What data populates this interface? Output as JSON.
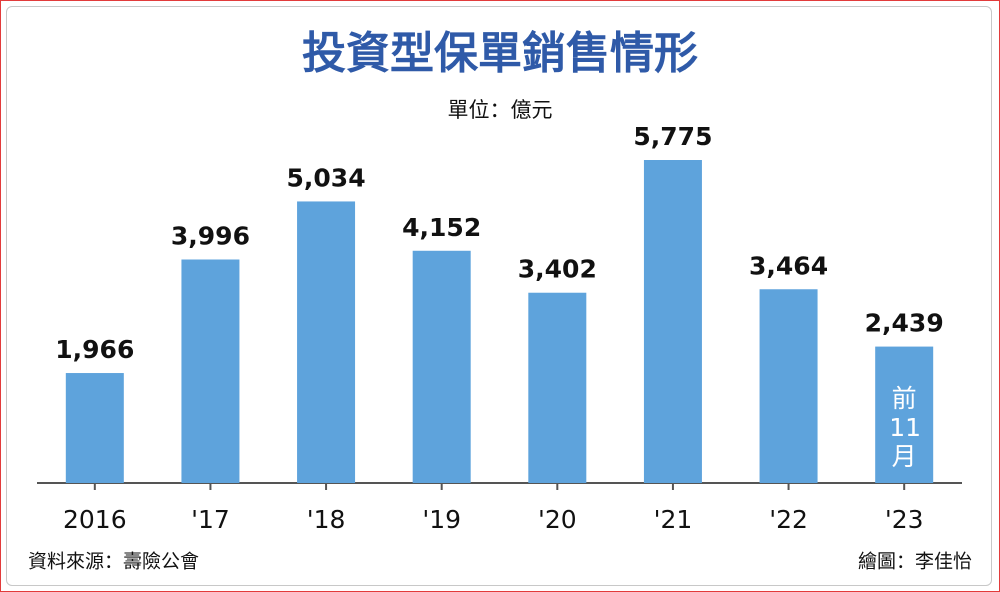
{
  "chart_data": {
    "type": "bar",
    "title": "投資型保單銷售情形",
    "subtitle": "單位：億元",
    "categories": [
      "2016",
      "'17",
      "'18",
      "'19",
      "'20",
      "'21",
      "'22",
      "'23"
    ],
    "values": [
      1966,
      3996,
      5034,
      4152,
      3402,
      5775,
      3464,
      2439
    ],
    "value_labels": [
      "1,966",
      "3,996",
      "5,034",
      "4,152",
      "3,402",
      "5,775",
      "3,464",
      "2,439"
    ],
    "color": "#5ea3dc",
    "annotation": "前11月",
    "source": "資料來源：壽險公會",
    "credit": "繪圖：李佳怡"
  }
}
